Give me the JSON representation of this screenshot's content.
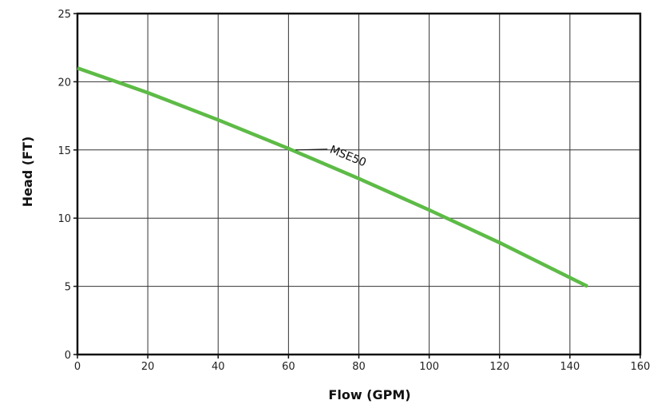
{
  "chart_data": {
    "type": "line",
    "xlabel": "Flow (GPM)",
    "ylabel": "Head (FT)",
    "xlim": [
      0,
      160
    ],
    "ylim": [
      0,
      25
    ],
    "x_ticks": [
      "0",
      "20",
      "40",
      "60",
      "80",
      "100",
      "120",
      "140",
      "160"
    ],
    "y_ticks": [
      "0",
      "5",
      "10",
      "15",
      "20",
      "25"
    ],
    "grid": true,
    "legend": "none",
    "series": [
      {
        "name": "MSE50",
        "color": "#5dbb46",
        "x": [
          0,
          20,
          40,
          60,
          80,
          100,
          120,
          145
        ],
        "y": [
          21.0,
          19.2,
          17.2,
          15.1,
          12.9,
          10.6,
          8.2,
          5.0
        ]
      }
    ],
    "annotations": [
      {
        "text": "MSE50",
        "series": "MSE50",
        "at_x": 62,
        "at_y": 15.0
      }
    ]
  }
}
